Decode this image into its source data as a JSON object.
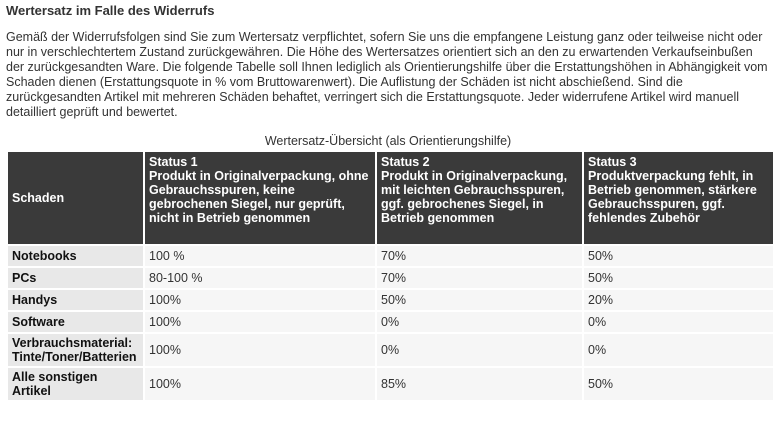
{
  "heading": "Wertersatz im Falle des Widerrufs",
  "intro": "Gemäß der Widerrufsfolgen sind Sie zum Wertersatz verpflichtet, sofern Sie uns die empfangene Leistung ganz oder teilweise nicht oder nur in verschlechtertem Zustand zurückgewähren. Die Höhe des Wertersatzes orientiert sich an den zu erwartenden Verkaufseinbußen der zurückgesandten Ware. Die folgende Tabelle soll Ihnen lediglich als Orientierungshilfe über die Erstattungshöhen in Abhängigkeit vom Schaden dienen (Erstattungsquote in % vom Bruttowarenwert). Die Auflistung der Schäden ist nicht abschießend. Sind die zurückgesandten Artikel mit mehreren Schäden behaftet, verringert sich die Erstattungsquote. Jeder widerrufene Artikel wird manuell detailliert geprüft und bewertet.",
  "caption": "Wertersatz-Übersicht (als Orientierungshilfe)",
  "table": {
    "header": {
      "damage": "Schaden",
      "status1_title": "Status 1",
      "status1_desc": "Produkt in Originalverpackung, ohne Gebrauchsspuren, keine gebrochenen Siegel, nur geprüft, nicht in Betrieb genommen",
      "status2_title": "Status 2",
      "status2_desc": "Produkt in Originalverpackung, mit leichten Gebrauchsspuren, ggf. gebrochenes Siegel, in Betrieb genommen",
      "status3_title": "Status 3",
      "status3_desc": "Produktverpackung fehlt, in Betrieb genommen, stärkere Gebrauchsspuren, ggf. fehlendes Zubehör"
    },
    "rows": [
      {
        "label": "Notebooks",
        "s1": "100 %",
        "s2": "70%",
        "s3": "50%"
      },
      {
        "label": "PCs",
        "s1": "80-100 %",
        "s2": "70%",
        "s3": "50%"
      },
      {
        "label": "Handys",
        "s1": "100%",
        "s2": "50%",
        "s3": "20%"
      },
      {
        "label": "Software",
        "s1": "100%",
        "s2": "0%",
        "s3": "0%"
      },
      {
        "label": "Verbrauchsmaterial: Tinte/Toner/Batterien",
        "s1": "100%",
        "s2": "0%",
        "s3": "0%"
      },
      {
        "label": "Alle sonstigen Artikel",
        "s1": "100%",
        "s2": "85%",
        "s3": "50%"
      }
    ]
  },
  "colors": {
    "header_bg": "#3a3a3a",
    "label_bg": "#e8e8e8",
    "cell_bg": "#f6f6f6",
    "text": "#333333"
  }
}
